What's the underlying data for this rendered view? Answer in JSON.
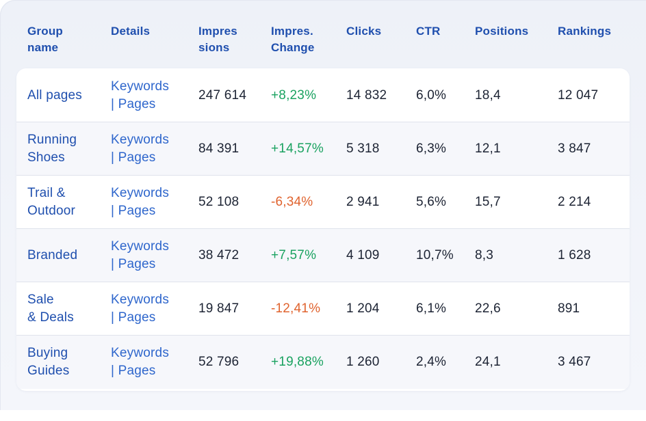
{
  "table": {
    "headers": {
      "group": "Group\nname",
      "details": "Details",
      "impressions": "Impres\nsions",
      "impressions_change": "Impres.\nChange",
      "clicks": "Clicks",
      "ctr": "CTR",
      "positions": "Positions",
      "rankings": "Rankings"
    },
    "rows": [
      {
        "group": "All pages",
        "keywords": "Keywords",
        "pages": "| Pages",
        "impressions": "247 614",
        "change": "+8,23%",
        "change_dir": "pos",
        "clicks": "14 832",
        "ctr": "6,0%",
        "positions": "18,4",
        "rankings": "12 047"
      },
      {
        "group": "Running\nShoes",
        "keywords": "Keywords",
        "pages": "| Pages",
        "impressions": "84 391",
        "change": "+14,57%",
        "change_dir": "pos",
        "clicks": "5 318",
        "ctr": "6,3%",
        "positions": "12,1",
        "rankings": "3 847"
      },
      {
        "group": "Trail &\nOutdoor",
        "keywords": "Keywords",
        "pages": "| Pages",
        "impressions": "52 108",
        "change": "-6,34%",
        "change_dir": "neg",
        "clicks": "2 941",
        "ctr": "5,6%",
        "positions": "15,7",
        "rankings": "2 214"
      },
      {
        "group": "Branded",
        "keywords": "Keywords",
        "pages": "| Pages",
        "impressions": "38 472",
        "change": "+7,57%",
        "change_dir": "pos",
        "clicks": "4 109",
        "ctr": "10,7%",
        "positions": "8,3",
        "rankings": "1 628"
      },
      {
        "group": "Sale\n& Deals",
        "keywords": "Keywords",
        "pages": "| Pages",
        "impressions": "19 847",
        "change": "-12,41%",
        "change_dir": "neg",
        "clicks": "1 204",
        "ctr": "6,1%",
        "positions": "22,6",
        "rankings": "891"
      },
      {
        "group": "Buying\nGuides",
        "keywords": "Keywords",
        "pages": "| Pages",
        "impressions": "52 796",
        "change": "+19,88%",
        "change_dir": "pos",
        "clicks": "1 260",
        "ctr": "2,4%",
        "positions": "24,1",
        "rankings": "3 467"
      }
    ]
  },
  "colors": {
    "header_text": "#1f4fae",
    "link": "#2e66cc",
    "positive": "#1aa260",
    "negative": "#e0632e"
  }
}
